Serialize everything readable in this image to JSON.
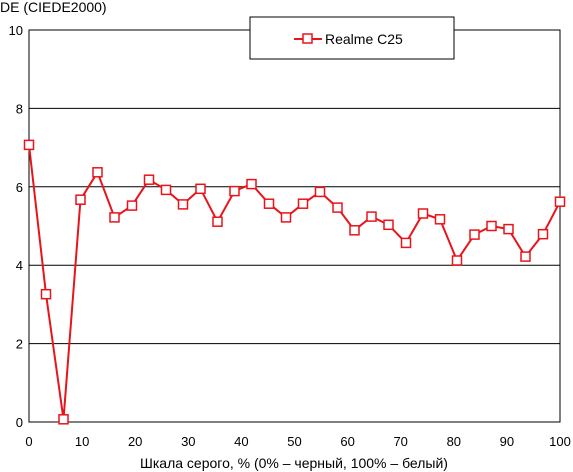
{
  "chart_data": {
    "type": "line",
    "ylabel": "DE (CIEDE2000)",
    "xlabel": "Шкала серого, % (0% – черный, 100% – белый)",
    "xlim": [
      0,
      100
    ],
    "ylim": [
      0,
      10
    ],
    "x_ticks": [
      "0",
      "10",
      "20",
      "30",
      "40",
      "50",
      "60",
      "70",
      "80",
      "90",
      "100"
    ],
    "y_ticks": [
      "0",
      "2",
      "4",
      "6",
      "8",
      "10"
    ],
    "grid": "horizontal",
    "legend_position": "top-center",
    "series": [
      {
        "name": "Realme C25",
        "color": "#e8141c",
        "marker": "square",
        "x": [
          0,
          3.2,
          6.5,
          9.7,
          12.9,
          16.1,
          19.4,
          22.6,
          25.8,
          29.0,
          32.3,
          35.5,
          38.7,
          41.9,
          45.2,
          48.4,
          51.6,
          54.8,
          58.1,
          61.3,
          64.5,
          67.7,
          71.0,
          74.2,
          77.4,
          80.6,
          83.9,
          87.1,
          90.3,
          93.5,
          96.8,
          100
        ],
        "values": [
          7.07,
          3.26,
          0.07,
          5.67,
          6.37,
          5.22,
          5.52,
          6.18,
          5.92,
          5.55,
          5.95,
          5.11,
          5.89,
          6.07,
          5.57,
          5.22,
          5.57,
          5.87,
          5.47,
          4.89,
          5.24,
          5.03,
          4.57,
          5.32,
          5.17,
          4.12,
          4.78,
          5.0,
          4.92,
          4.22,
          4.79,
          5.62
        ]
      }
    ]
  }
}
